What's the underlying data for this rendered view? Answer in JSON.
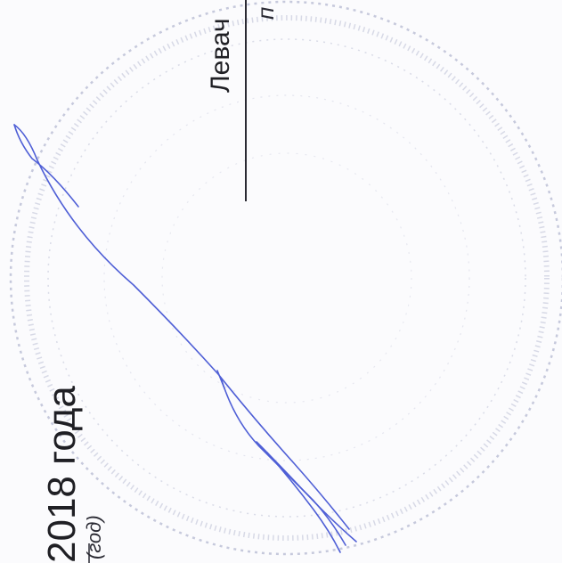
{
  "document": {
    "date_text": "2018 года",
    "date_hint": "(год)",
    "top_word": "Левач",
    "top_hint": "п",
    "stamp_color": "#b9bdd3",
    "signature_color": "#4f5fd6"
  }
}
